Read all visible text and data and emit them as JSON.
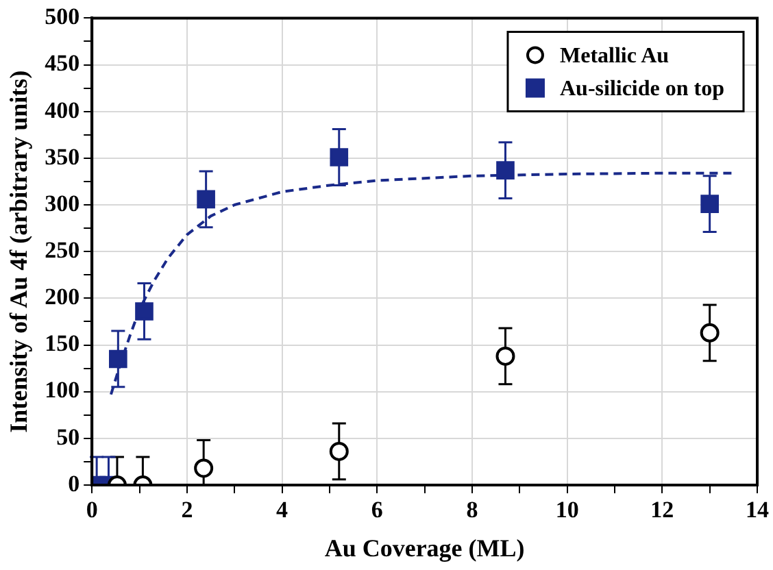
{
  "chart_data": {
    "type": "scatter",
    "xlabel": "Au Coverage (ML)",
    "ylabel": "Intensity of Au 4f (arbitrary units)",
    "xlim": [
      0,
      14
    ],
    "xticks": [
      0,
      {
        "value": 1,
        "label": null
      },
      2,
      {
        "value": 3,
        "label": null
      },
      4,
      {
        "value": 5,
        "label": null
      },
      6,
      {
        "value": 7,
        "label": null
      },
      8,
      {
        "value": 9,
        "label": null
      },
      10,
      {
        "value": 11,
        "label": null
      },
      12,
      {
        "value": 13,
        "label": null
      },
      14
    ],
    "ylim": [
      0,
      500
    ],
    "yticks": [
      0,
      {
        "value": 25,
        "label": null
      },
      50,
      {
        "value": 75,
        "label": null
      },
      100,
      {
        "value": 125,
        "label": null
      },
      150,
      {
        "value": 175,
        "label": null
      },
      200,
      {
        "value": 225,
        "label": null
      },
      250,
      {
        "value": 275,
        "label": null
      },
      300,
      {
        "value": 325,
        "label": null
      },
      350,
      {
        "value": 375,
        "label": null
      },
      400,
      {
        "value": 425,
        "label": null
      },
      450,
      {
        "value": 475,
        "label": null
      },
      500
    ],
    "grid": true,
    "legend": "top right",
    "series": [
      {
        "name": "Metallic Au",
        "marker": "circle",
        "color": "#000000",
        "x": [
          0.53,
          1.07,
          2.35,
          5.2,
          8.7,
          13.0
        ],
        "values": [
          0,
          0,
          18,
          36,
          138,
          163
        ],
        "errors": [
          [
            0,
            30
          ],
          [
            0,
            30
          ],
          [
            0,
            48
          ],
          30,
          30,
          30
        ]
      },
      {
        "name": "Au-silicide on top",
        "marker": "square",
        "color": "#1a2a8a",
        "x": [
          0.1,
          0.35,
          0.55,
          1.1,
          2.4,
          5.2,
          8.7,
          13.0
        ],
        "values": [
          0,
          0,
          135,
          186,
          306,
          351,
          337,
          301
        ],
        "errors": [
          [
            0,
            30
          ],
          [
            0,
            30
          ],
          30,
          30,
          30,
          30,
          30,
          30
        ]
      },
      {
        "type": "line",
        "marker": "none",
        "line_style": "dashed",
        "color": "#1a2a8a",
        "x": [
          0.4,
          0.6,
          0.8,
          1.0,
          1.3,
          1.6,
          2.0,
          2.5,
          3.0,
          4.0,
          5.0,
          6.0,
          8.0,
          10.0,
          12.0,
          13.5
        ],
        "values": [
          97,
          130,
          160,
          188,
          218,
          243,
          268,
          288,
          300,
          314,
          321,
          326,
          331,
          333,
          334,
          334
        ]
      }
    ]
  }
}
